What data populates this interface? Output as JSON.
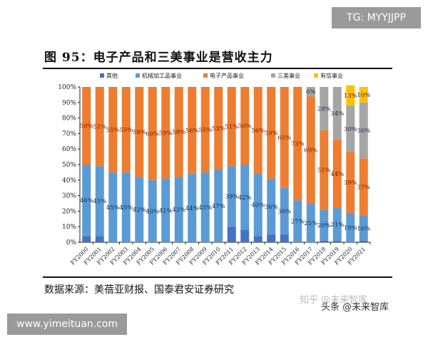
{
  "chart_data": {
    "type": "bar",
    "stacked": true,
    "title": "图 95：电子产品和三美事业是营收主力",
    "source": "数据来源：美蓓亚财报、国泰君安证券研究",
    "categories": [
      "FY2000",
      "FY2001",
      "FY2002",
      "FY2003",
      "FY2004",
      "FY2005",
      "FY2006",
      "FY2007",
      "FY2008",
      "FY2009",
      "FY2010",
      "FY2011",
      "FY2012",
      "FY2013",
      "FY2014",
      "FY2015",
      "FY2016",
      "FY2017",
      "FY2018",
      "FY2019",
      "FY2020",
      "FY2021"
    ],
    "ylim": [
      0,
      100
    ],
    "yticks": [
      "0%",
      "10%",
      "20%",
      "30%",
      "40%",
      "50%",
      "60%",
      "70%",
      "80%",
      "90%",
      "100%"
    ],
    "legend_position": "top",
    "grid": false,
    "series": [
      {
        "name": "其他",
        "color": "#4472c4",
        "labeled": false,
        "values": [
          4,
          4,
          0,
          0,
          0,
          0,
          0,
          0,
          0,
          0,
          0,
          10,
          8,
          4,
          5,
          5,
          0,
          0,
          1,
          1,
          0,
          1
        ]
      },
      {
        "name": "机械加工品事业",
        "color": "#5b9bd5",
        "labeled": true,
        "values": [
          46,
          45,
          45,
          45,
          42,
          40,
          41,
          42,
          44,
          45,
          47,
          39,
          42,
          40,
          36,
          30,
          27,
          25,
          20,
          21,
          19,
          16
        ]
      },
      {
        "name": "电子产品事业",
        "color": "#ed7d31",
        "labeled": true,
        "values": [
          50,
          51,
          55,
          55,
          58,
          60,
          59,
          58,
          56,
          55,
          53,
          51,
          50,
          56,
          59,
          65,
          73,
          69,
          51,
          44,
          39,
          37
        ]
      },
      {
        "name": "三美事业",
        "color": "#a5a5a5",
        "labeled": true,
        "values": [
          0,
          0,
          0,
          0,
          0,
          0,
          0,
          0,
          0,
          0,
          0,
          0,
          0,
          0,
          0,
          0,
          0,
          6,
          28,
          34,
          30,
          36
        ]
      },
      {
        "name": "有信事业",
        "color": "#ffc000",
        "labeled": true,
        "values": [
          0,
          0,
          0,
          0,
          0,
          0,
          0,
          0,
          0,
          0,
          0,
          0,
          0,
          0,
          0,
          0,
          0,
          0,
          0,
          0,
          13,
          10
        ]
      }
    ]
  },
  "watermarks": {
    "tg": "TG: MYYJJPP",
    "site": "www.yimeituan.com",
    "zhihu": "知乎 @未来智库",
    "toutiao": "头条 @未来智库"
  }
}
